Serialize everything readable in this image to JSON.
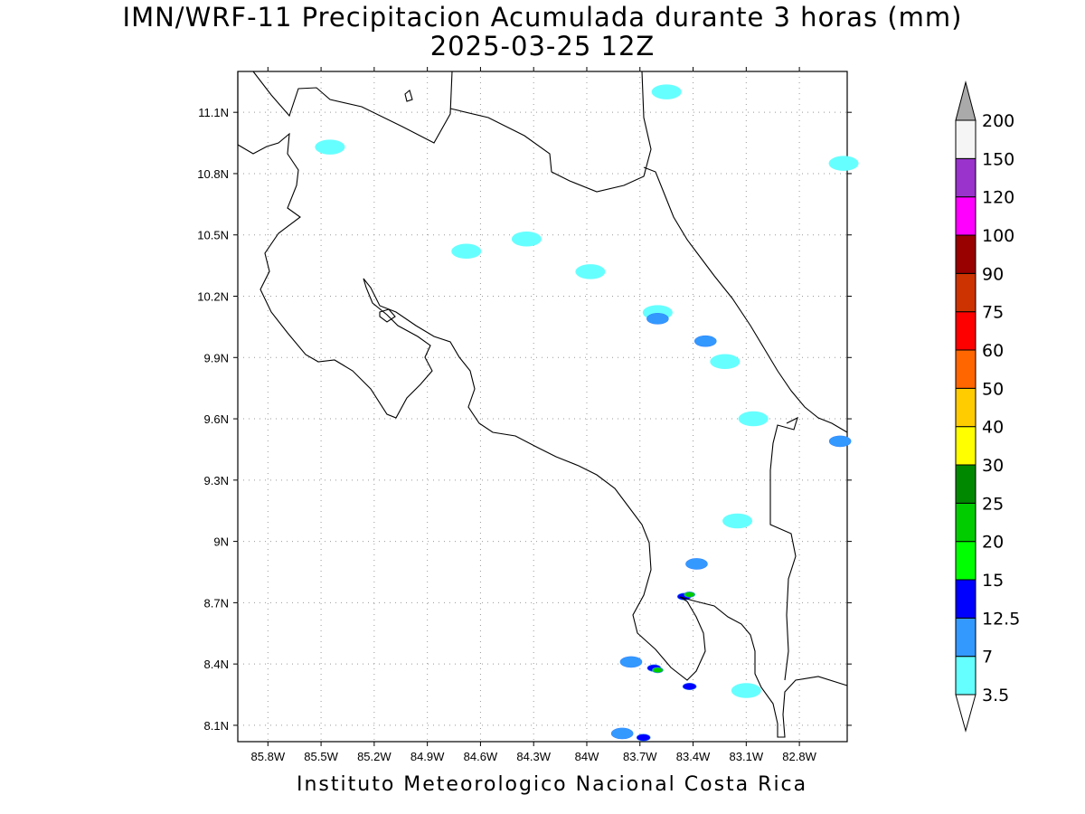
{
  "header": {
    "title_line1": "IMN/WRF-11 Precipitacion Acumulada durante 3 horas (mm)",
    "title_line2": "2025-03-25 12Z"
  },
  "footer": {
    "credit": "Instituto Meteorologico Nacional Costa Rica"
  },
  "chart_data": {
    "type": "heatmap",
    "x_ticks": [
      "85.8W",
      "85.5W",
      "85.2W",
      "84.9W",
      "84.6W",
      "84.3W",
      "84W",
      "83.7W",
      "83.4W",
      "83.1W",
      "82.8W"
    ],
    "y_ticks": [
      "11.1N",
      "10.8N",
      "10.5N",
      "10.2N",
      "9.9N",
      "9.6N",
      "9.3N",
      "9N",
      "8.7N",
      "8.4N",
      "8.1N"
    ],
    "x_values": [
      -85.8,
      -85.5,
      -85.2,
      -84.9,
      -84.6,
      -84.3,
      -84.0,
      -83.7,
      -83.4,
      -83.1,
      -82.8
    ],
    "y_values": [
      11.1,
      10.8,
      10.5,
      10.2,
      9.9,
      9.6,
      9.3,
      9.0,
      8.7,
      8.4,
      8.1
    ],
    "xlim": [
      -85.97,
      -82.53
    ],
    "ylim": [
      8.02,
      11.3
    ],
    "grid": true,
    "legend": {
      "placement": "right",
      "levels": [
        {
          "label": "3.5",
          "color": "#66ffff"
        },
        {
          "label": "7",
          "color": "#3399ff"
        },
        {
          "label": "12.5",
          "color": "#0000ff"
        },
        {
          "label": "15",
          "color": "#00ff00"
        },
        {
          "label": "20",
          "color": "#00cc00"
        },
        {
          "label": "25",
          "color": "#008800"
        },
        {
          "label": "30",
          "color": "#ffff00"
        },
        {
          "label": "40",
          "color": "#ffcc00"
        },
        {
          "label": "50",
          "color": "#ff6600"
        },
        {
          "label": "60",
          "color": "#ff0000"
        },
        {
          "label": "75",
          "color": "#cc3300"
        },
        {
          "label": "90",
          "color": "#990000"
        },
        {
          "label": "100",
          "color": "#ff00ff"
        },
        {
          "label": "120",
          "color": "#9933cc"
        },
        {
          "label": "150",
          "color": "#f5f5f5"
        },
        {
          "label": "200",
          "color": "#aaaaaa"
        }
      ]
    },
    "precip_cells": [
      {
        "lon": -85.45,
        "lat": 10.93,
        "level": 0
      },
      {
        "lon": -84.68,
        "lat": 10.42,
        "level": 0
      },
      {
        "lon": -84.34,
        "lat": 10.48,
        "level": 0
      },
      {
        "lon": -83.98,
        "lat": 10.32,
        "level": 0
      },
      {
        "lon": -83.6,
        "lat": 10.12,
        "level": 0
      },
      {
        "lon": -83.6,
        "lat": 10.09,
        "level": 1
      },
      {
        "lon": -83.33,
        "lat": 9.98,
        "level": 1
      },
      {
        "lon": -83.22,
        "lat": 9.88,
        "level": 0
      },
      {
        "lon": -83.06,
        "lat": 9.6,
        "level": 0
      },
      {
        "lon": -82.57,
        "lat": 9.49,
        "level": 1
      },
      {
        "lon": -83.15,
        "lat": 9.1,
        "level": 0
      },
      {
        "lon": -83.38,
        "lat": 8.89,
        "level": 1
      },
      {
        "lon": -83.45,
        "lat": 8.73,
        "level": 2
      },
      {
        "lon": -83.42,
        "lat": 8.74,
        "level": 4
      },
      {
        "lon": -83.75,
        "lat": 8.41,
        "level": 1
      },
      {
        "lon": -83.62,
        "lat": 8.38,
        "level": 2
      },
      {
        "lon": -83.6,
        "lat": 8.37,
        "level": 4
      },
      {
        "lon": -83.42,
        "lat": 8.29,
        "level": 2
      },
      {
        "lon": -83.1,
        "lat": 8.27,
        "level": 0
      },
      {
        "lon": -83.8,
        "lat": 8.06,
        "level": 1
      },
      {
        "lon": -83.68,
        "lat": 8.04,
        "level": 2
      },
      {
        "lon": -83.55,
        "lat": 11.2,
        "level": 0
      },
      {
        "lon": -82.55,
        "lat": 10.85,
        "level": 0
      }
    ]
  }
}
